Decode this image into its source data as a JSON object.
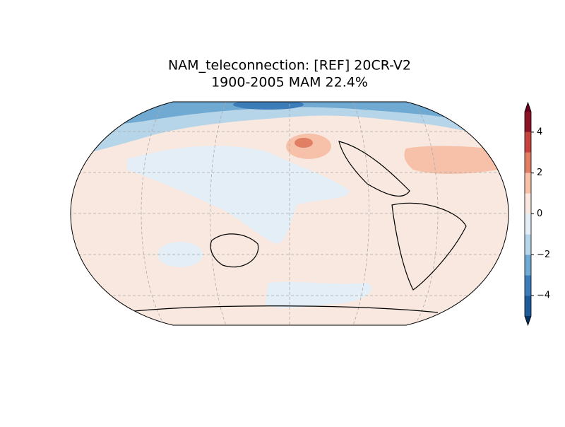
{
  "title": [
    "NAM_teleconnection: [REF] 20CR-V2",
    "1900-2005 MAM 22.4%"
  ],
  "colorbar": {
    "levels": [
      -5,
      -4,
      -3,
      -2,
      -1,
      0,
      1,
      2,
      3,
      4,
      5
    ],
    "colors": [
      "#1f5a99",
      "#3b7cb9",
      "#70a9d1",
      "#b6d5e9",
      "#e3eef6",
      "#f9e8df",
      "#f6c1a8",
      "#e07f64",
      "#c4433f",
      "#8b1327"
    ],
    "under_color": "#053061",
    "over_color": "#67001f",
    "ticks": [
      {
        "value": -4,
        "label": "−4"
      },
      {
        "value": -2,
        "label": "−2"
      },
      0,
      2,
      4
    ]
  }
}
